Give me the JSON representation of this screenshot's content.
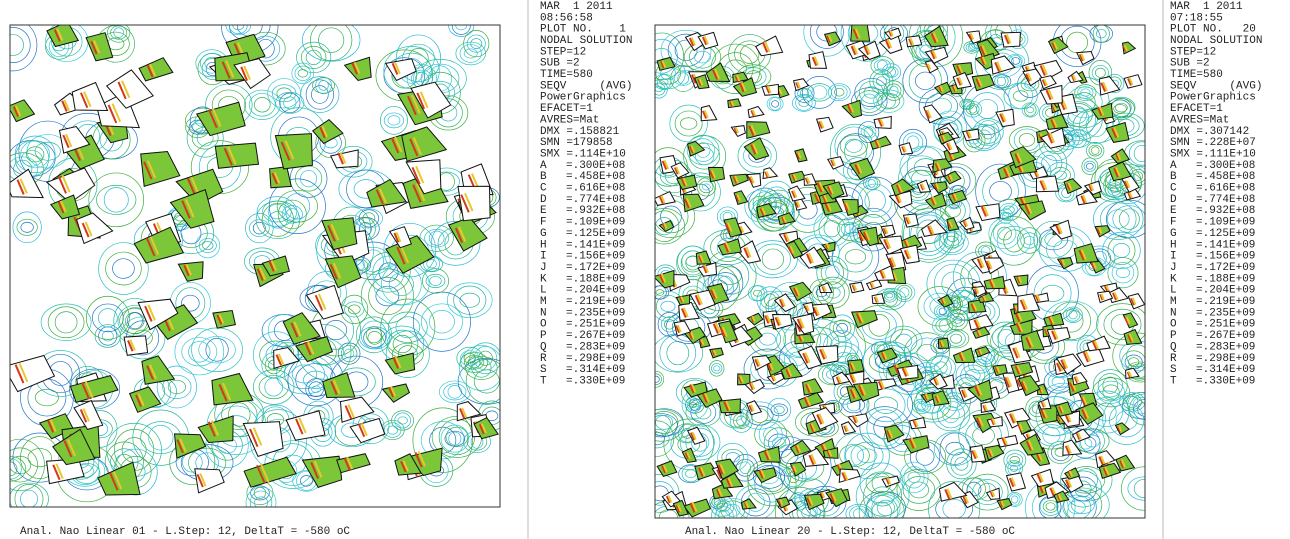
{
  "panels": [
    {
      "header": [
        "MAR  1 2011",
        "08:56:58",
        "PLOT NO.    1",
        "NODAL SOLUTION",
        "STEP=12",
        "SUB =2",
        "TIME=580",
        "SEQV     (AVG)",
        "PowerGraphics",
        "EFACET=1",
        "AVRES=Mat",
        "DMX =.158821",
        "SMN =179858",
        "SMX =.114E+10"
      ],
      "legend": [
        {
          "letter": "A",
          "value": "=.300E+08",
          "color": "#1c2a8c"
        },
        {
          "letter": "B",
          "value": "=.458E+08",
          "color": "#1f4fb5"
        },
        {
          "letter": "C",
          "value": "=.616E+08",
          "color": "#2277c8"
        },
        {
          "letter": "D",
          "value": "=.774E+08",
          "color": "#2b9cd6"
        },
        {
          "letter": "E",
          "value": "=.932E+08",
          "color": "#2bb8d8"
        },
        {
          "letter": "F",
          "value": "=.109E+09",
          "color": "#36c9d6"
        },
        {
          "letter": "G",
          "value": "=.125E+09",
          "color": "#2cc2b8"
        },
        {
          "letter": "H",
          "value": "=.141E+09",
          "color": "#28b89a"
        },
        {
          "letter": "I",
          "value": "=.156E+09",
          "color": "#2fb37a"
        },
        {
          "letter": "J",
          "value": "=.172E+09",
          "color": "#34b25a"
        },
        {
          "letter": "K",
          "value": "=.188E+09",
          "color": "#3dae3a"
        },
        {
          "letter": "L",
          "value": "=.204E+09",
          "color": "#5cb42c"
        },
        {
          "letter": "M",
          "value": "=.219E+09",
          "color": "#86c02a"
        },
        {
          "letter": "N",
          "value": "=.235E+09",
          "color": "#b0cc2a"
        },
        {
          "letter": "O",
          "value": "=.251E+09",
          "color": "#d6d82a"
        },
        {
          "letter": "P",
          "value": "=.267E+09",
          "color": "#e8c82a"
        },
        {
          "letter": "Q",
          "value": "=.283E+09",
          "color": "#e0a02a"
        },
        {
          "letter": "R",
          "value": "=.298E+09",
          "color": "#cf7a28"
        },
        {
          "letter": "S",
          "value": "=.314E+09",
          "color": "#bb5a22"
        },
        {
          "letter": "T",
          "value": "=.330E+09",
          "color": "#9c3a1a"
        }
      ],
      "caption": "Anal. Nao Linear 01 - L.Step: 12, DeltaT = -580 oC"
    },
    {
      "header": [
        "MAR  1 2011",
        "07:18:55",
        "PLOT NO.   20",
        "NODAL SOLUTION",
        "STEP=12",
        "SUB =2",
        "TIME=580",
        "SEQV     (AVG)",
        "PowerGraphics",
        "EFACET=1",
        "AVRES=Mat",
        "DMX =.307142",
        "SMN =.228E+07",
        "SMX =.111E+10"
      ],
      "legend": [
        {
          "letter": "A",
          "value": "=.300E+08",
          "color": "#1c2a8c"
        },
        {
          "letter": "B",
          "value": "=.458E+08",
          "color": "#1f4fb5"
        },
        {
          "letter": "C",
          "value": "=.616E+08",
          "color": "#2277c8"
        },
        {
          "letter": "D",
          "value": "=.774E+08",
          "color": "#2b9cd6"
        },
        {
          "letter": "E",
          "value": "=.932E+08",
          "color": "#2bb8d8"
        },
        {
          "letter": "F",
          "value": "=.109E+09",
          "color": "#36c9d6"
        },
        {
          "letter": "G",
          "value": "=.125E+09",
          "color": "#2cc2b8"
        },
        {
          "letter": "H",
          "value": "=.141E+09",
          "color": "#28b89a"
        },
        {
          "letter": "I",
          "value": "=.156E+09",
          "color": "#2fb37a"
        },
        {
          "letter": "J",
          "value": "=.172E+09",
          "color": "#34b25a"
        },
        {
          "letter": "K",
          "value": "=.188E+09",
          "color": "#3dae3a"
        },
        {
          "letter": "L",
          "value": "=.204E+09",
          "color": "#5cb42c"
        },
        {
          "letter": "M",
          "value": "=.219E+09",
          "color": "#86c02a"
        },
        {
          "letter": "N",
          "value": "=.235E+09",
          "color": "#b0cc2a"
        },
        {
          "letter": "O",
          "value": "=.251E+09",
          "color": "#d6d82a"
        },
        {
          "letter": "P",
          "value": "=.267E+09",
          "color": "#e8c82a"
        },
        {
          "letter": "Q",
          "value": "=.283E+09",
          "color": "#e0a02a"
        },
        {
          "letter": "R",
          "value": "=.298E+09",
          "color": "#cf7a28"
        },
        {
          "letter": "S",
          "value": "=.314E+09",
          "color": "#bb5a22"
        },
        {
          "letter": "T",
          "value": "=.330E+09",
          "color": "#9c3a1a"
        }
      ],
      "caption": "Anal. Nao Linear 20 - L.Step: 12, DeltaT = -580 oC"
    }
  ]
}
